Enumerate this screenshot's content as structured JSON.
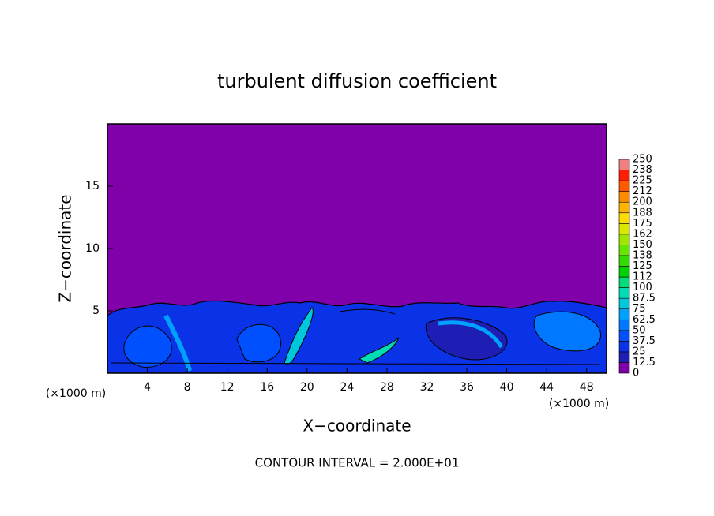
{
  "chart_data": {
    "type": "contour",
    "title": "turbulent diffusion coefficient",
    "xlabel": "X−coordinate",
    "ylabel": "Z−coordinate",
    "xunit": "(×1000 m)",
    "note": "CONTOUR INTERVAL = 2.000E+01",
    "xlim": [
      0,
      50
    ],
    "ylim": [
      0,
      20
    ],
    "xticks": [
      4,
      8,
      12,
      16,
      20,
      24,
      28,
      32,
      36,
      40,
      44,
      48
    ],
    "yticks": [
      5,
      10,
      15
    ],
    "colorbar": {
      "levels": [
        0,
        12.5,
        25,
        37.5,
        50,
        62.5,
        75,
        87.5,
        100,
        112,
        125,
        138,
        150,
        162,
        175,
        188,
        200,
        212,
        225,
        238,
        250
      ],
      "colors": [
        "#8000aa",
        "#1e1eb4",
        "#0a32e6",
        "#0050ff",
        "#0078ff",
        "#00a0ff",
        "#00c8dc",
        "#00dcb4",
        "#00dc78",
        "#00d200",
        "#32dc00",
        "#64e600",
        "#a0e600",
        "#dce600",
        "#ffdc00",
        "#ffb400",
        "#ff8c00",
        "#ff5a00",
        "#ff1e00",
        "#f08080"
      ]
    }
  }
}
